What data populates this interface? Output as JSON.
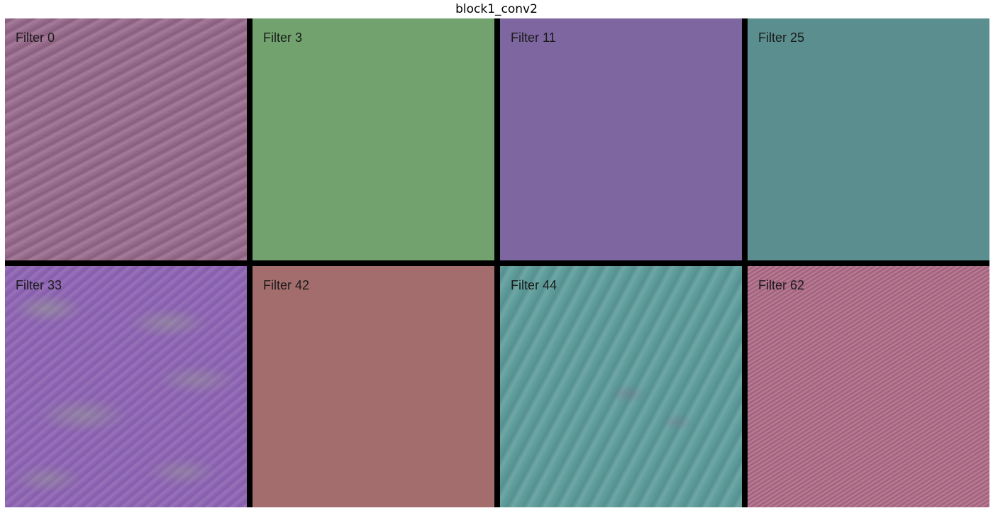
{
  "title": "block1_conv2",
  "tiles": [
    {
      "label": "Filter 0",
      "color": "#9b6d8f",
      "texture": "diagonal-waves"
    },
    {
      "label": "Filter 3",
      "color": "#72a36f",
      "texture": "flat"
    },
    {
      "label": "Filter 11",
      "color": "#7e66a0",
      "texture": "flat"
    },
    {
      "label": "Filter 25",
      "color": "#5b8f8f",
      "texture": "flat"
    },
    {
      "label": "Filter 33",
      "color": "#8f67b4",
      "texture": "blotchy"
    },
    {
      "label": "Filter 42",
      "color": "#a46d6d",
      "texture": "flat"
    },
    {
      "label": "Filter 44",
      "color": "#5f9d9b",
      "texture": "soft-streaks"
    },
    {
      "label": "Filter 62",
      "color": "#b06f89",
      "texture": "fine-stripes"
    }
  ]
}
